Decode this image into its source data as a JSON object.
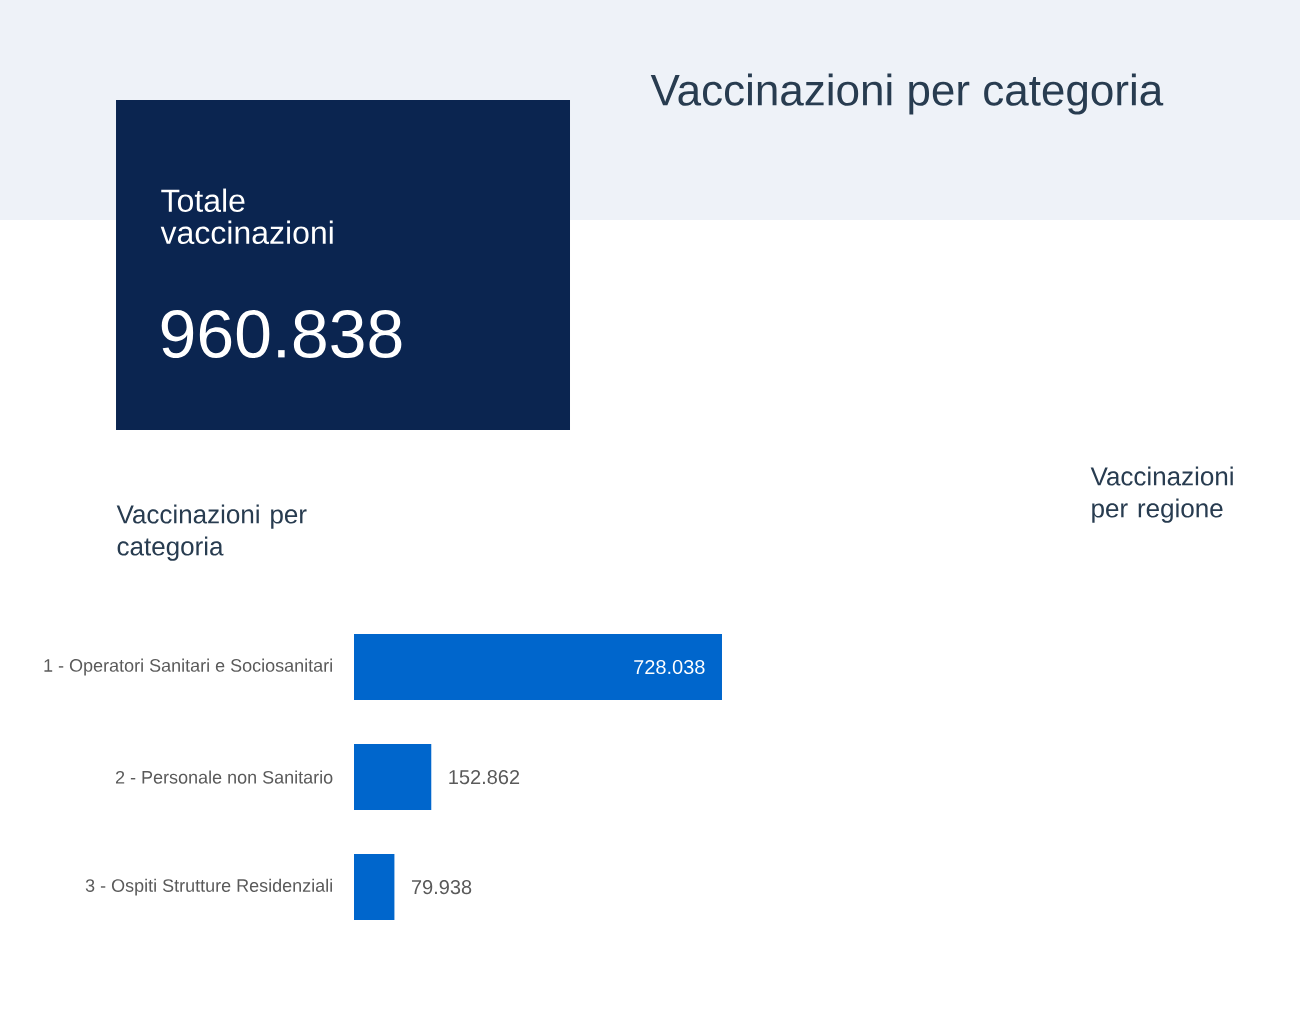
{
  "chart_data": [
    {
      "type": "other",
      "title": "Vaccinazioni per categoria",
      "annotations": [
        "Totale vaccinazioni",
        "960.838"
      ],
      "color": "#0b2550"
    },
    {
      "type": "bar",
      "orientation": "horizontal",
      "title": "Vaccinazioni per categoria",
      "categories": [
        "1 - Operatori Sanitari e Sociosanitari",
        "2 - Personale non Sanitario",
        "3 - Ospiti Strutture Residenziali"
      ],
      "values": [
        728038,
        152862,
        79938
      ],
      "value_labels": [
        "728.038",
        "152.862",
        "79.938"
      ],
      "color": "#0066cc",
      "tick_labels": "y"
    },
    {
      "type": "other",
      "title": "Vaccinazioni per regione"
    }
  ]
}
